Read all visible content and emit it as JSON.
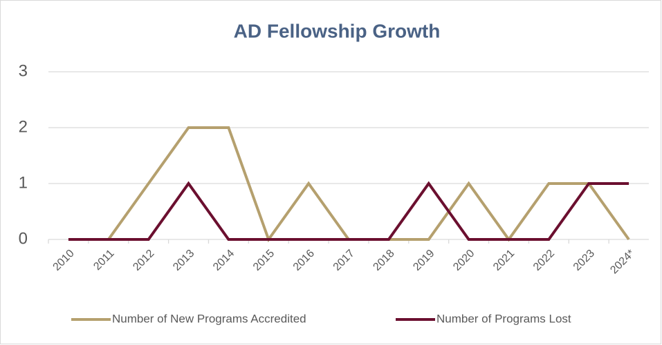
{
  "chart_data": {
    "type": "line",
    "title": "AD Fellowship Growth",
    "categories": [
      "2010",
      "2011",
      "2012",
      "2013",
      "2014",
      "2015",
      "2016",
      "2017",
      "2018",
      "2019",
      "2020",
      "2021",
      "2022",
      "2023",
      "2024*"
    ],
    "series": [
      {
        "name": "Number of New Programs Accredited",
        "color": "#b5a06e",
        "values": [
          0,
          0,
          1,
          2,
          2,
          0,
          1,
          0,
          0,
          0,
          1,
          0,
          1,
          1,
          0
        ]
      },
      {
        "name": "Number of Programs Lost",
        "color": "#6b0f2f",
        "values": [
          0,
          0,
          0,
          1,
          0,
          0,
          0,
          0,
          0,
          1,
          0,
          0,
          0,
          1,
          1
        ]
      }
    ],
    "ylim": [
      0,
      3
    ],
    "yticks": [
      0,
      1,
      2,
      3
    ],
    "grid": true,
    "legend": "bottom"
  }
}
